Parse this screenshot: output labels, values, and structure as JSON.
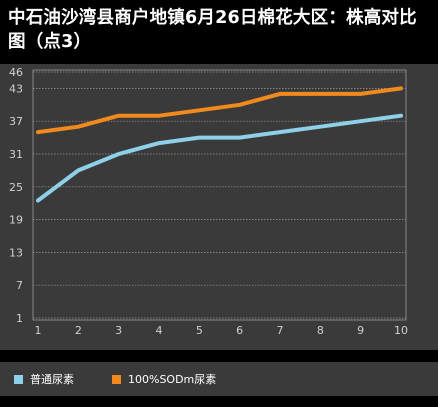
{
  "chart_title": "中石油沙湾县商户地镇6月26日棉花大区：株高对比图（点3）",
  "colors": {
    "background": "#000000",
    "plot_background": "#3a3a3a",
    "grid": "#9a9a9a",
    "axis_text": "#d0d0d0"
  },
  "chart_data": {
    "type": "line",
    "title": "中石油沙湾县商户地镇6月26日棉花大区：株高对比图（点3）",
    "xlabel": "",
    "ylabel": "",
    "x": [
      1,
      2,
      3,
      4,
      5,
      6,
      7,
      8,
      9,
      10
    ],
    "xticks": [
      "1",
      "2",
      "3",
      "4",
      "5",
      "6",
      "7",
      "8",
      "9",
      "10"
    ],
    "yticks": [
      1,
      7,
      13,
      19,
      25,
      31,
      37,
      43,
      46
    ],
    "ylim": [
      1,
      46
    ],
    "grid": true,
    "legend_position": "bottom",
    "series": [
      {
        "name": "普通尿素",
        "color": "#8ed0e8",
        "values": [
          22.5,
          28,
          31,
          33,
          34,
          34,
          35,
          36,
          37,
          38
        ]
      },
      {
        "name": "100%SODm尿素",
        "color": "#f08a1c",
        "values": [
          35,
          36,
          38,
          38,
          39,
          40,
          42,
          42,
          42,
          43
        ]
      }
    ]
  }
}
